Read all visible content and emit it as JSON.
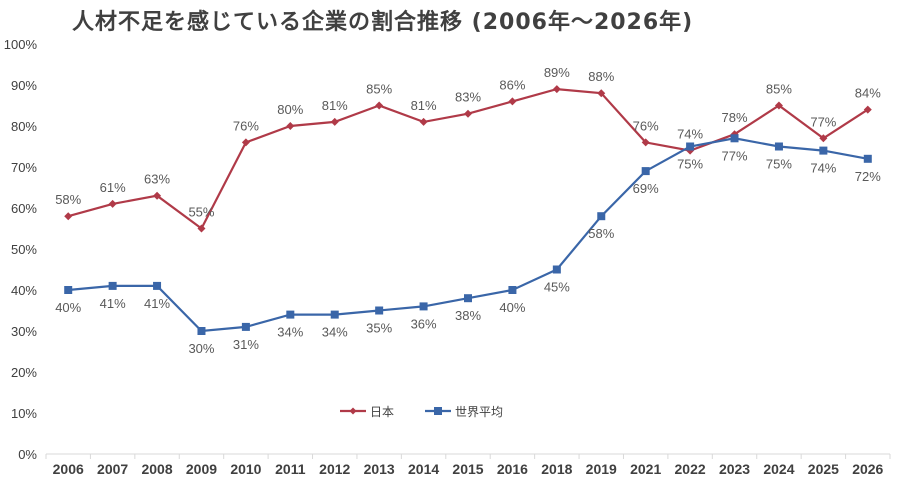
{
  "chart_data": {
    "type": "line",
    "title": "人材不足を感じている企業の割合推移 (2006年～2026年)",
    "categories": [
      "2006",
      "2007",
      "2008",
      "2009",
      "2010",
      "2011",
      "2012",
      "2013",
      "2014",
      "2015",
      "2016",
      "2018",
      "2019",
      "2021",
      "2022",
      "2023",
      "2024",
      "2025",
      "2026"
    ],
    "series": [
      {
        "name": "日本",
        "color": "#b03a48",
        "marker": "diamond",
        "values": [
          58,
          61,
          63,
          55,
          76,
          80,
          81,
          85,
          81,
          83,
          86,
          89,
          88,
          76,
          74,
          78,
          85,
          77,
          84
        ]
      },
      {
        "name": "世界平均",
        "color": "#3a66a8",
        "marker": "square",
        "values": [
          40,
          41,
          41,
          30,
          31,
          34,
          34,
          35,
          36,
          38,
          40,
          45,
          58,
          69,
          75,
          77,
          75,
          74,
          72
        ]
      }
    ],
    "ylim": [
      0,
      100
    ],
    "yticks": [
      0,
      10,
      20,
      30,
      40,
      50,
      60,
      70,
      80,
      90,
      100
    ],
    "ytick_format": "%",
    "grid": false,
    "legend": "bottom-center",
    "data_labels": true
  }
}
